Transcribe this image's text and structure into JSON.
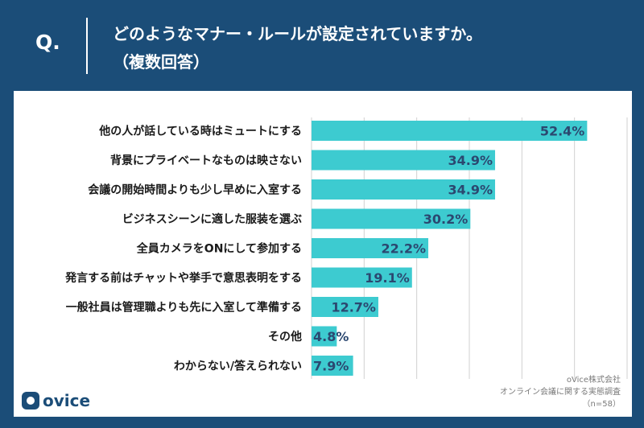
{
  "header": {
    "q_label": "Q.",
    "question_line1": "どのようなマナー・ルールが設定されていますか。",
    "question_line2": "（複数回答）"
  },
  "logo": {
    "text": "ovice"
  },
  "source": {
    "line1": "oVice株式会社",
    "line2": "オンライン会議に関する実態調査",
    "line3": "（n=58）"
  },
  "colors": {
    "bar": "#3dcbd0",
    "header_bg": "#1b4d78",
    "value_text": "#2b4870",
    "grid": "#d0d0d0"
  },
  "chart_data": {
    "type": "bar",
    "orientation": "horizontal",
    "categories": [
      "他の人が話している時はミュートにする",
      "背景にプライベートなものは映さない",
      "会議の開始時間よりも少し早めに入室する",
      "ビジネスシーンに適した服装を選ぶ",
      "全員カメラをONにして参加する",
      "発言する前はチャットや挙手で意思表明をする",
      "一般社員は管理職よりも先に入室して準備する",
      "その他",
      "わからない/答えられない"
    ],
    "values": [
      52.4,
      34.9,
      34.9,
      30.2,
      22.2,
      19.1,
      12.7,
      4.8,
      7.9
    ],
    "value_labels": [
      "52.4%",
      "34.9%",
      "34.9%",
      "30.2%",
      "22.2%",
      "19.1%",
      "12.7%",
      "4.8%",
      "7.9%"
    ],
    "xlim": [
      0,
      60
    ],
    "grid": true,
    "title": "",
    "xlabel": "",
    "ylabel": ""
  }
}
